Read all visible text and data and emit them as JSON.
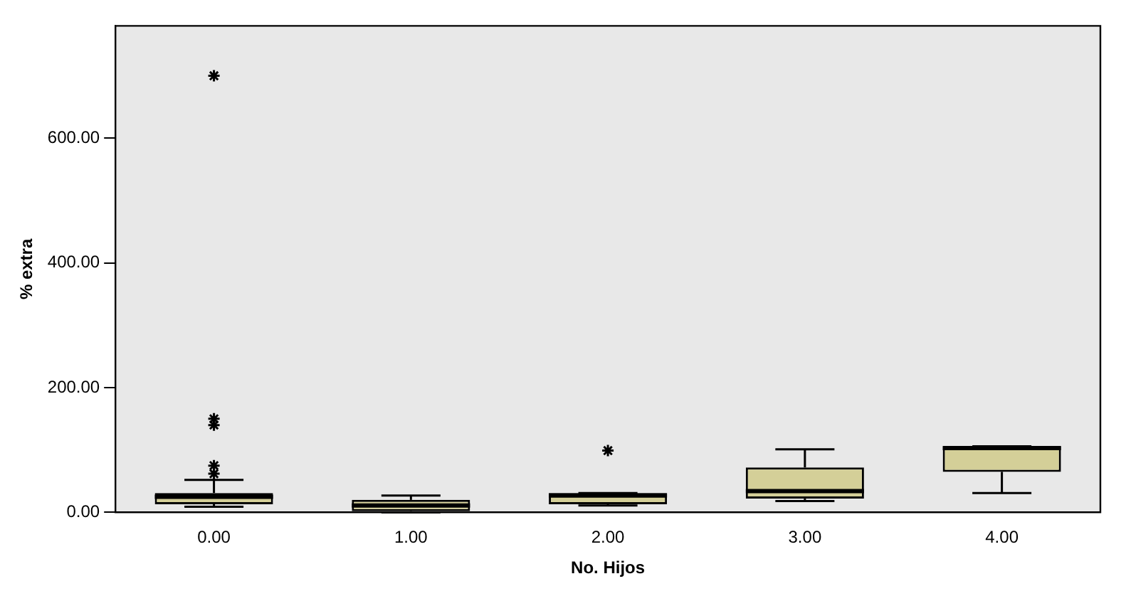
{
  "chart_data": {
    "type": "box",
    "xlabel": "No. Hijos",
    "ylabel": "% extra",
    "categories": [
      "0.00",
      "1.00",
      "2.00",
      "3.00",
      "4.00"
    ],
    "boxes": [
      {
        "low": 9,
        "q1": 13,
        "median": 25,
        "q3": 31,
        "high": 52,
        "outliers": [
          62,
          75,
          140,
          150,
          700
        ]
      },
      {
        "low": 0,
        "q1": 2,
        "median": 11,
        "q3": 20,
        "high": 27
      },
      {
        "low": 11,
        "q1": 13,
        "median": 27,
        "q3": 31,
        "high": 31,
        "outliers": [
          99
        ]
      },
      {
        "low": 18,
        "q1": 22,
        "median": 34,
        "q3": 72,
        "high": 101
      },
      {
        "low": 31,
        "q1": 65,
        "median": 103,
        "q3": 106,
        "high": 106
      }
    ],
    "color": "#d4cf98",
    "marker": "star",
    "grid": false,
    "legend": false,
    "ylim": [
      0,
      780
    ],
    "yticks": [
      {
        "value": 0,
        "label": "0.00"
      },
      {
        "value": 200,
        "label": "200.00"
      },
      {
        "value": 400,
        "label": "400.00"
      },
      {
        "value": 600,
        "label": "600.00"
      }
    ]
  }
}
